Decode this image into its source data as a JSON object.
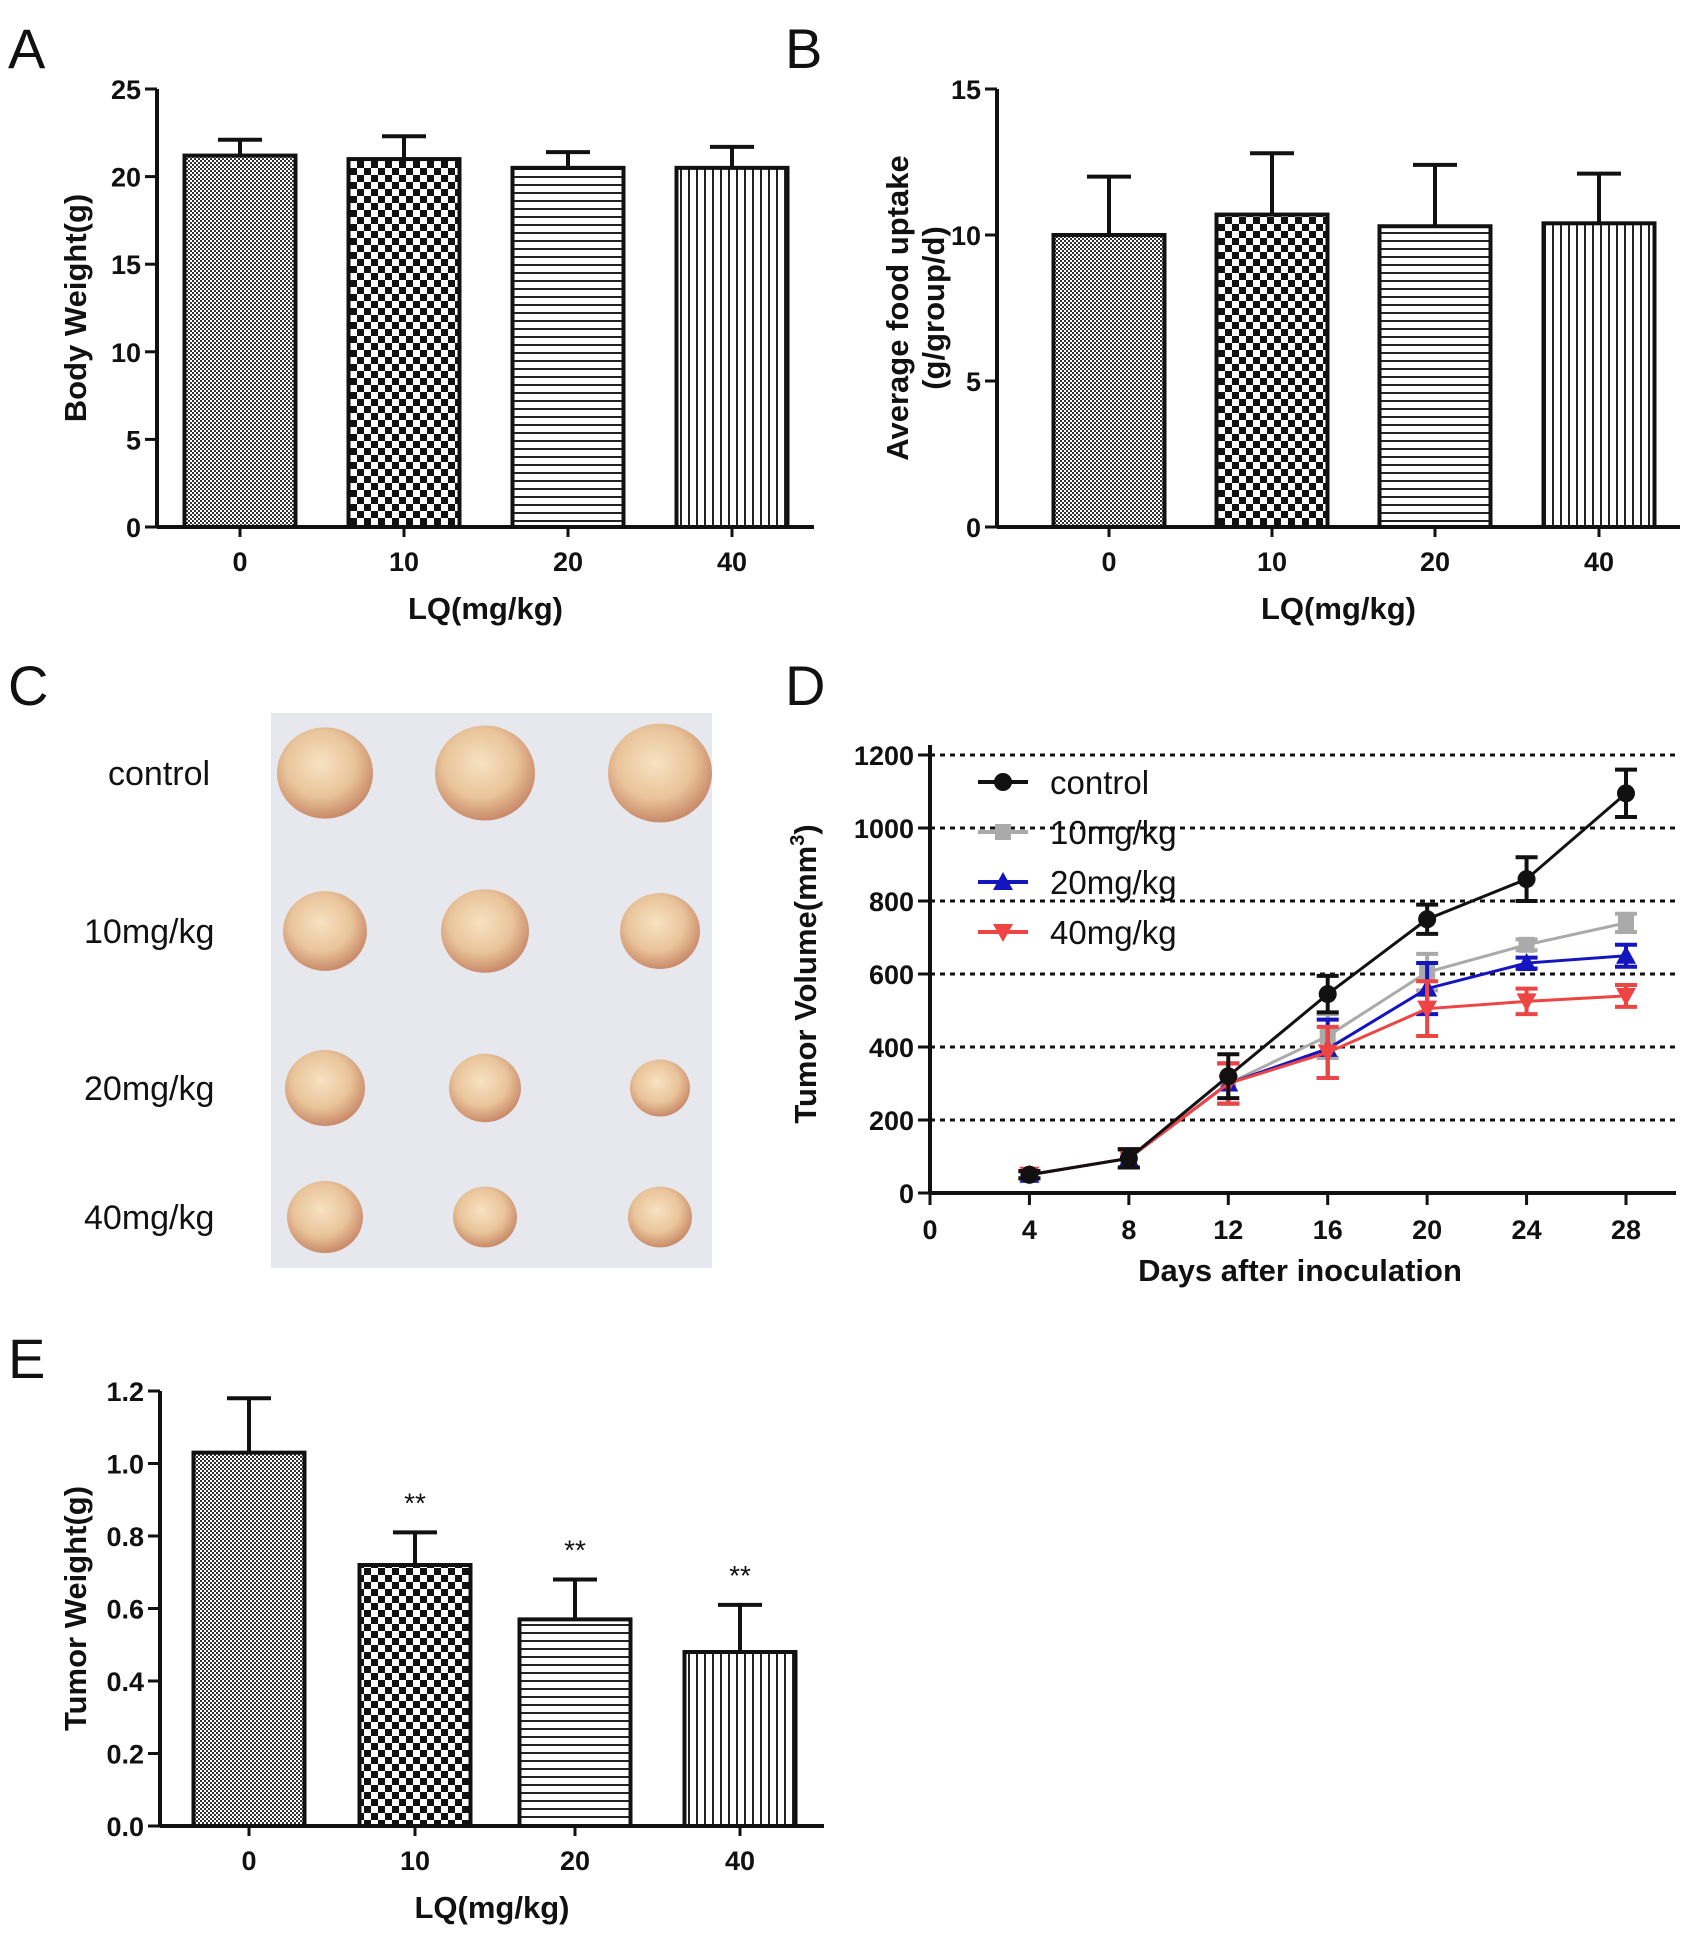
{
  "panels": {
    "A": "A",
    "B": "B",
    "C": "C",
    "D": "D",
    "E": "E"
  },
  "chart_data": [
    {
      "id": "A",
      "type": "bar",
      "categories": [
        "0",
        "10",
        "20",
        "40"
      ],
      "values": [
        21.2,
        21.0,
        20.5,
        20.5
      ],
      "errors": [
        0.9,
        1.3,
        0.9,
        1.2
      ],
      "xlabel": "LQ(mg/kg)",
      "ylabel": "Body Weight(g)",
      "ylim": [
        0,
        25
      ],
      "yticks": [
        0,
        5,
        10,
        15,
        20,
        25
      ],
      "patterns": [
        "dots",
        "checker",
        "hlines",
        "vlines"
      ]
    },
    {
      "id": "B",
      "type": "bar",
      "categories": [
        "0",
        "10",
        "20",
        "40"
      ],
      "values": [
        10.0,
        10.7,
        10.3,
        10.4
      ],
      "errors": [
        2.0,
        2.1,
        2.1,
        1.7
      ],
      "xlabel": "LQ(mg/kg)",
      "ylabel": "Average food uptake",
      "ylabel2": "(g/group/d)",
      "ylim": [
        0,
        15
      ],
      "yticks": [
        0,
        5,
        10,
        15
      ],
      "patterns": [
        "dots",
        "checker",
        "hlines",
        "vlines"
      ]
    },
    {
      "id": "D",
      "type": "line",
      "x": [
        4,
        8,
        12,
        16,
        20,
        24,
        28
      ],
      "xticks": [
        0,
        4,
        8,
        12,
        16,
        20,
        24,
        28
      ],
      "yticks": [
        0,
        200,
        400,
        600,
        800,
        1000,
        1200
      ],
      "ylim": [
        0,
        1200
      ],
      "xlim": [
        0,
        28
      ],
      "xlabel": "Days after inoculation",
      "ylabel": "Tumor Volume(mm",
      "ylabel_sup": "3",
      "ylabel_end": ")",
      "grid": "dashed horizontal",
      "legend": "top-left",
      "series": [
        {
          "name": "control",
          "color": "#111111",
          "marker": "circle",
          "values": [
            50,
            95,
            320,
            545,
            750,
            860,
            1095
          ],
          "errors": [
            10,
            25,
            60,
            50,
            40,
            60,
            65
          ]
        },
        {
          "name": "10mg/kg",
          "color": "#aaaaaa",
          "marker": "square",
          "values": [
            50,
            95,
            300,
            430,
            605,
            680,
            740
          ],
          "errors": [
            10,
            25,
            55,
            60,
            50,
            15,
            25
          ]
        },
        {
          "name": "20mg/kg",
          "color": "#1515c0",
          "marker": "triangle-up",
          "values": [
            50,
            95,
            300,
            395,
            560,
            630,
            650
          ],
          "errors": [
            10,
            25,
            55,
            80,
            70,
            15,
            30
          ]
        },
        {
          "name": "40mg/kg",
          "color": "#ee4444",
          "marker": "triangle-down",
          "values": [
            50,
            95,
            300,
            385,
            505,
            525,
            540
          ],
          "errors": [
            10,
            25,
            55,
            70,
            75,
            35,
            30
          ]
        }
      ]
    },
    {
      "id": "E",
      "type": "bar",
      "categories": [
        "0",
        "10",
        "20",
        "40"
      ],
      "values": [
        1.03,
        0.72,
        0.57,
        0.48
      ],
      "errors": [
        0.15,
        0.09,
        0.11,
        0.13
      ],
      "annotations": [
        "",
        "**",
        "**",
        "**"
      ],
      "xlabel": "LQ(mg/kg)",
      "ylabel": "Tumor Weight(g)",
      "ylim": [
        0,
        1.2
      ],
      "yticks": [
        "0.0",
        "0.2",
        "0.4",
        "0.6",
        "0.8",
        "1.0",
        "1.2"
      ],
      "patterns": [
        "dots",
        "checker",
        "hlines",
        "vlines"
      ]
    }
  ],
  "photo": {
    "rows": [
      "control",
      "10mg/kg",
      "20mg/kg",
      "40mg/kg"
    ]
  }
}
